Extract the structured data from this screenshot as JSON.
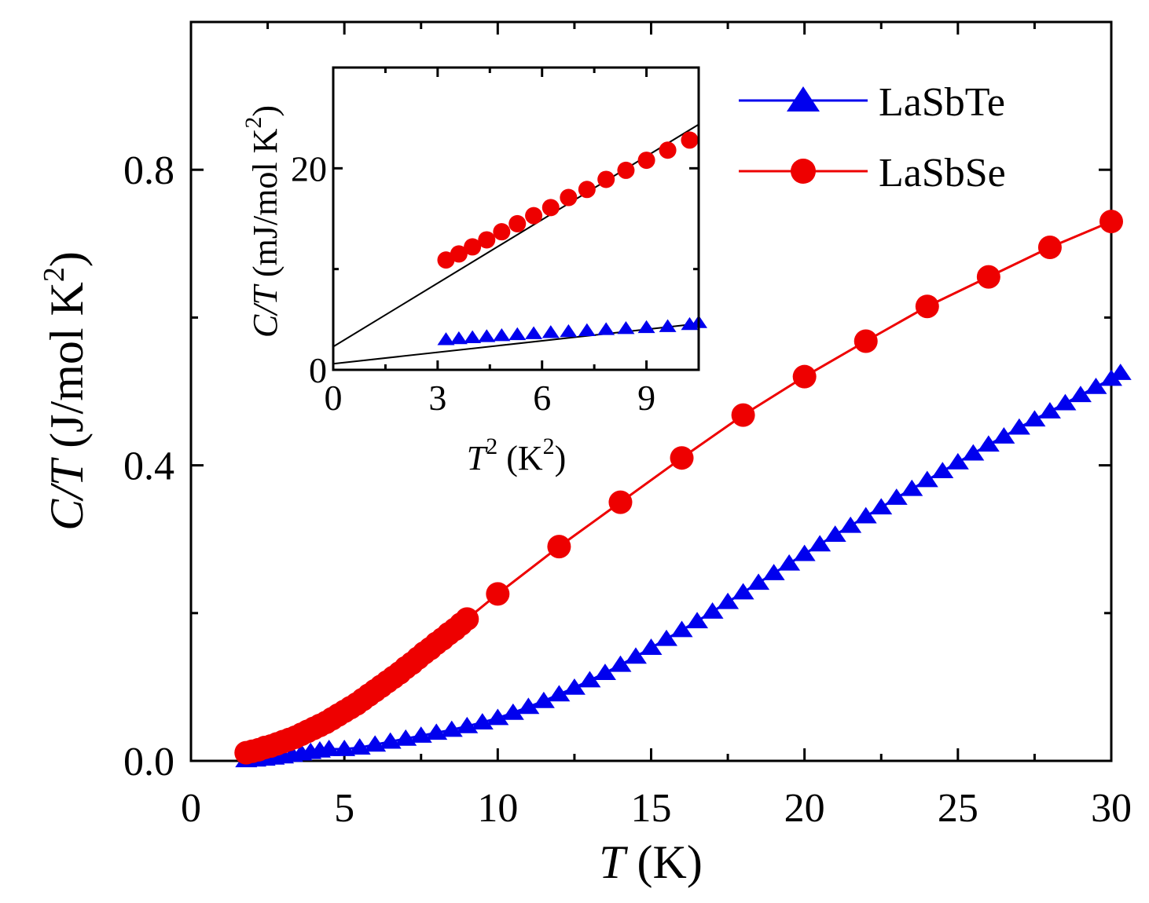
{
  "chart_data": [
    {
      "type": "line",
      "role": "main",
      "xlabel": {
        "italic": "T",
        "plain": " (K)"
      },
      "ylabel": {
        "italic": "C/T",
        "plain": " (J/mol K",
        "sup": "2",
        "close": ")"
      },
      "xlim": [
        0,
        30
      ],
      "ylim": [
        0,
        1.0
      ],
      "xticks": [
        0,
        5,
        10,
        15,
        20,
        25,
        30
      ],
      "xtick_labels": [
        "0",
        "5",
        "10",
        "15",
        "20",
        "25",
        "30"
      ],
      "yticks": [
        0.0,
        0.4,
        0.8
      ],
      "ytick_labels": [
        "0.0",
        "0.4",
        "0.8"
      ],
      "legend_position": "top-right",
      "series": [
        {
          "name": "LaSbTe",
          "color": "#0000ee",
          "marker": "triangle",
          "x": [
            1.8,
            2.1,
            2.4,
            2.7,
            3.0,
            3.3,
            3.6,
            3.9,
            4.2,
            4.5,
            5.0,
            5.5,
            6.0,
            6.5,
            7.0,
            7.5,
            8.0,
            8.5,
            9.0,
            9.5,
            10.0,
            10.5,
            11.0,
            11.5,
            12.0,
            12.5,
            13.0,
            13.5,
            14.0,
            14.5,
            15.0,
            15.5,
            16.0,
            16.5,
            17.0,
            17.5,
            18.0,
            18.5,
            19.0,
            19.5,
            20.0,
            20.5,
            21.0,
            21.5,
            22.0,
            22.5,
            23.0,
            23.5,
            24.0,
            24.5,
            25.0,
            25.5,
            26.0,
            26.5,
            27.0,
            27.5,
            28.0,
            28.5,
            29.0,
            29.5,
            30.0,
            30.3
          ],
          "y": [
            0.0008,
            0.0018,
            0.003,
            0.0045,
            0.006,
            0.008,
            0.01,
            0.012,
            0.014,
            0.016,
            0.016,
            0.018,
            0.022,
            0.026,
            0.03,
            0.034,
            0.038,
            0.042,
            0.047,
            0.052,
            0.058,
            0.065,
            0.073,
            0.081,
            0.09,
            0.099,
            0.109,
            0.119,
            0.13,
            0.141,
            0.153,
            0.165,
            0.177,
            0.189,
            0.202,
            0.215,
            0.228,
            0.241,
            0.254,
            0.267,
            0.28,
            0.293,
            0.306,
            0.318,
            0.331,
            0.343,
            0.356,
            0.368,
            0.38,
            0.392,
            0.404,
            0.416,
            0.428,
            0.439,
            0.451,
            0.462,
            0.473,
            0.484,
            0.495,
            0.506,
            0.517,
            0.525
          ]
        },
        {
          "name": "LaSbSe",
          "color": "#ee0000",
          "marker": "circle",
          "x": [
            1.8,
            2.0,
            2.2,
            2.4,
            2.6,
            2.8,
            3.0,
            3.2,
            3.4,
            3.6,
            3.8,
            4.0,
            4.2,
            4.4,
            4.6,
            4.8,
            5.0,
            5.2,
            5.4,
            5.6,
            5.8,
            6.0,
            6.2,
            6.4,
            6.6,
            6.8,
            7.0,
            7.2,
            7.4,
            7.6,
            7.8,
            8.0,
            8.2,
            8.4,
            8.6,
            8.8,
            9.0,
            10,
            12,
            14,
            16,
            18,
            20,
            22,
            24,
            26,
            28,
            30
          ],
          "y": [
            0.011,
            0.013,
            0.015,
            0.018,
            0.02,
            0.023,
            0.026,
            0.029,
            0.032,
            0.036,
            0.04,
            0.044,
            0.048,
            0.052,
            0.057,
            0.062,
            0.067,
            0.072,
            0.077,
            0.083,
            0.089,
            0.095,
            0.101,
            0.107,
            0.113,
            0.119,
            0.126,
            0.132,
            0.139,
            0.146,
            0.152,
            0.159,
            0.165,
            0.172,
            0.178,
            0.185,
            0.192,
            0.226,
            0.29,
            0.35,
            0.41,
            0.468,
            0.52,
            0.568,
            0.615,
            0.655,
            0.695,
            0.73
          ]
        }
      ]
    },
    {
      "type": "scatter",
      "role": "inset",
      "xlabel": {
        "italic": "T",
        "sup": "2",
        "plain": " (K",
        "sup2": "2",
        "close": ")"
      },
      "ylabel": {
        "italic": "C/T",
        "plain": " (mJ/mol K",
        "sup": "2",
        "close": ")"
      },
      "xlim": [
        0,
        10.5
      ],
      "ylim": [
        0,
        30
      ],
      "xticks": [
        0,
        3,
        6,
        9
      ],
      "xtick_labels": [
        "0",
        "3",
        "6",
        "9"
      ],
      "yticks": [
        0,
        20
      ],
      "ytick_labels": [
        "0",
        "20"
      ],
      "series": [
        {
          "name": "LaSbTe",
          "color": "#0000ee",
          "marker": "triangle",
          "x": [
            3.24,
            3.61,
            4.0,
            4.41,
            4.84,
            5.29,
            5.76,
            6.25,
            6.76,
            7.29,
            7.84,
            8.41,
            9.0,
            9.61,
            10.24,
            10.5
          ],
          "y": [
            3.0,
            3.1,
            3.2,
            3.3,
            3.4,
            3.5,
            3.6,
            3.7,
            3.8,
            3.9,
            4.0,
            4.1,
            4.2,
            4.3,
            4.5,
            4.7
          ]
        },
        {
          "name": "LaSbSe",
          "color": "#ee0000",
          "marker": "circle",
          "x": [
            3.24,
            3.61,
            4.0,
            4.41,
            4.84,
            5.29,
            5.76,
            6.25,
            6.76,
            7.29,
            7.84,
            8.41,
            9.0,
            9.61,
            10.24
          ],
          "y": [
            10.9,
            11.5,
            12.2,
            12.9,
            13.7,
            14.5,
            15.3,
            16.1,
            17.1,
            17.9,
            18.9,
            19.8,
            20.8,
            21.8,
            22.8
          ]
        }
      ],
      "fits": [
        {
          "series": "LaSbTe",
          "intercept": 0.6,
          "slope": 0.38,
          "x_range": [
            0,
            10.5
          ]
        },
        {
          "series": "LaSbSe",
          "intercept": 2.3,
          "slope": 2.1,
          "x_range": [
            0,
            10.5
          ]
        }
      ]
    }
  ]
}
